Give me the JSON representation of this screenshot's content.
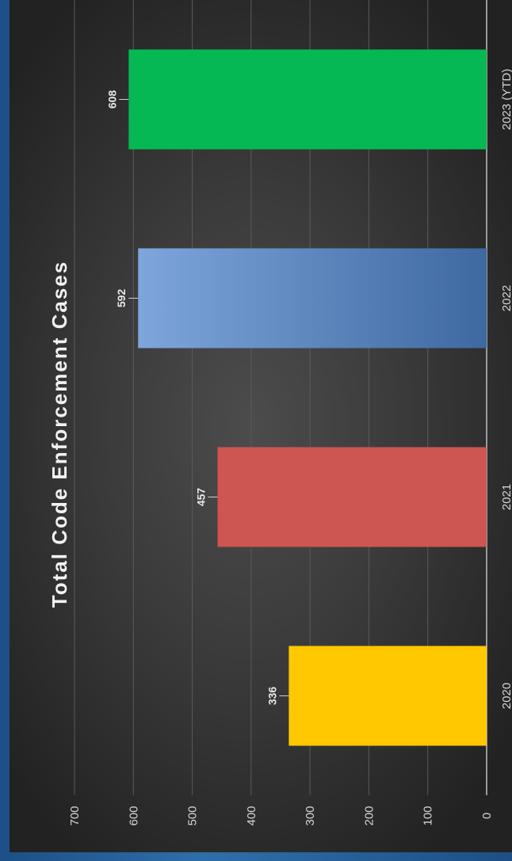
{
  "chart_data": {
    "type": "bar",
    "title": "Total Code Enforcement Cases",
    "categories": [
      "2020",
      "2021",
      "2022",
      "2023 (YTD)"
    ],
    "values": [
      336,
      457,
      592,
      608
    ],
    "data_labels": [
      "336",
      "457",
      "592",
      "608"
    ],
    "ylim": [
      0,
      700
    ],
    "y_ticks": [
      0,
      100,
      200,
      300,
      400,
      500,
      600,
      700
    ],
    "grid": true,
    "orientation": "rotated-90",
    "colors": [
      "#ffc800",
      "#cd5552",
      "#6f97cc",
      "#05b853"
    ]
  }
}
